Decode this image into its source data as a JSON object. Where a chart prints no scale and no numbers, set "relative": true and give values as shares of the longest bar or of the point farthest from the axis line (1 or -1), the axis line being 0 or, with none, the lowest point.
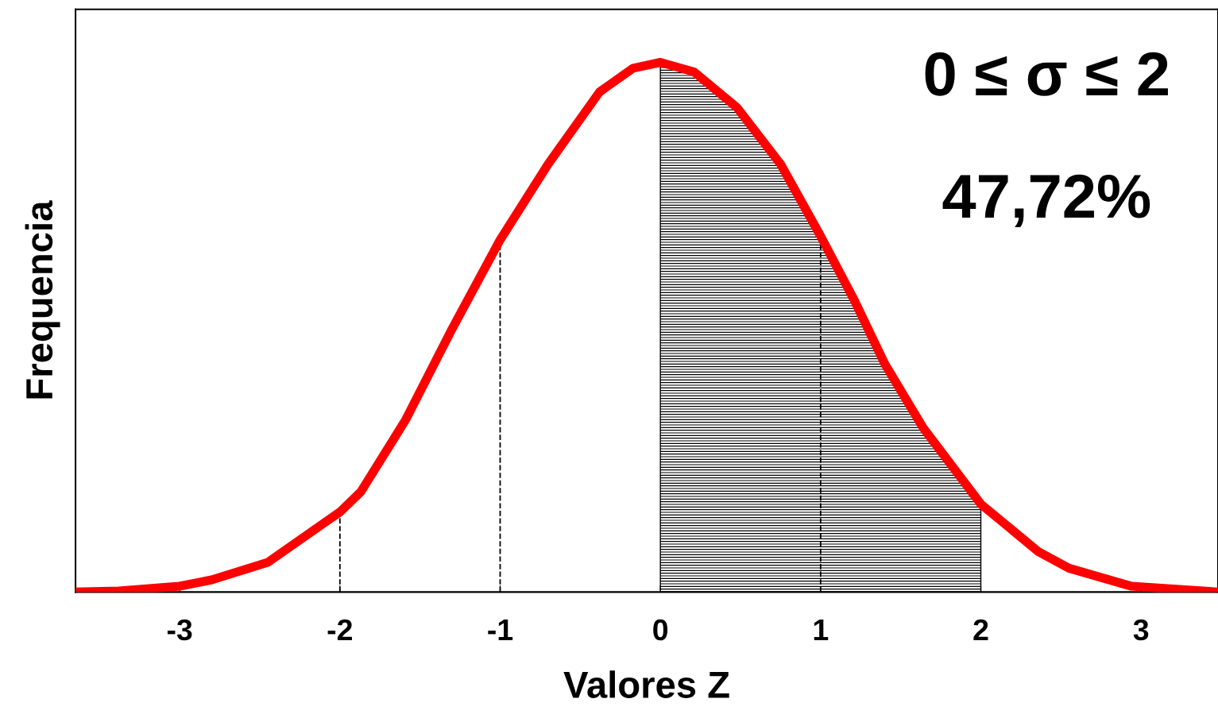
{
  "chart_data": {
    "type": "line",
    "relative": true,
    "xlabel": "Valores Z",
    "ylabel": "Frequencia",
    "xlim": [
      -3.65,
      3.48
    ],
    "xticks": [
      -3,
      -2,
      -1,
      0,
      1,
      2,
      3
    ],
    "x": [
      -3.65,
      -3.38,
      -3,
      -2.8,
      -2.45,
      -2.11,
      -2,
      -1.87,
      -1.59,
      -1.31,
      -1,
      -0.7,
      -0.38,
      -0.17,
      0,
      0.21,
      0.48,
      0.75,
      1,
      1.21,
      1.4,
      1.64,
      2,
      2.36,
      2.55,
      2.94,
      3.48
    ],
    "series": [
      {
        "color": "#ff0000",
        "values": [
          0,
          0.002,
          0.011,
          0.023,
          0.056,
          0.128,
          0.151,
          0.189,
          0.325,
          0.491,
          0.665,
          0.808,
          0.944,
          0.989,
          1,
          0.982,
          0.914,
          0.808,
          0.672,
          0.551,
          0.431,
          0.31,
          0.166,
          0.076,
          0.045,
          0.011,
          0
        ]
      },
      {
        "type": "area",
        "color": "#000000",
        "x": [
          0,
          0.21,
          0.48,
          0.75,
          1,
          1.21,
          1.4,
          1.64,
          2
        ],
        "values": [
          1,
          0.982,
          0.914,
          0.808,
          0.672,
          0.551,
          0.431,
          0.31,
          0.166
        ]
      }
    ],
    "ref_lines": [
      {
        "axis": "x",
        "value": -2,
        "line_style": "dashed"
      },
      {
        "axis": "x",
        "value": -1,
        "line_style": "dashed"
      },
      {
        "axis": "x",
        "value": 1,
        "line_style": "dashed"
      }
    ],
    "annotations": [
      "0 ≤ σ ≤ 2",
      "47,72%"
    ],
    "grid": false,
    "legend": false,
    "marker": "none",
    "line_style": "solid"
  }
}
